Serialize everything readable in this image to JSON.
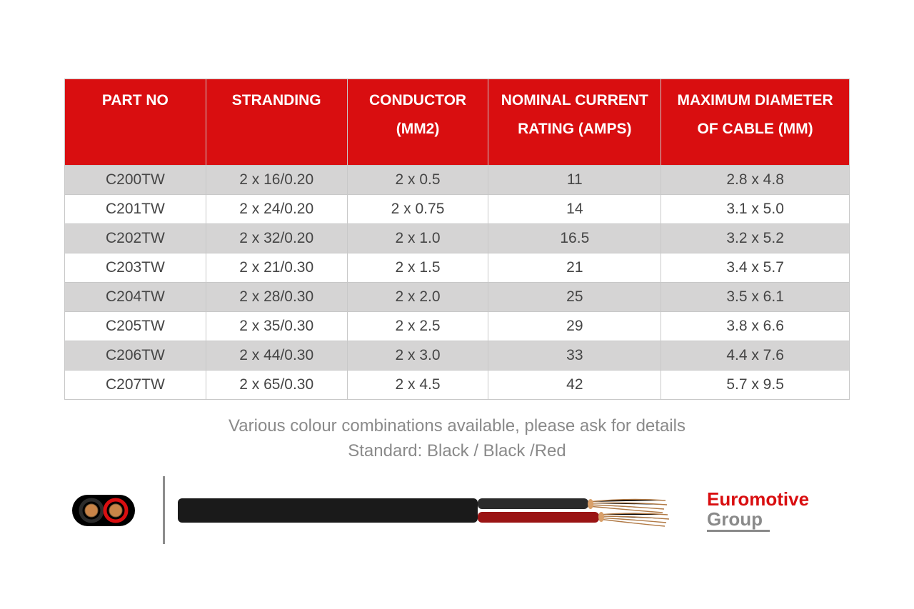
{
  "table": {
    "type": "table",
    "header_bg": "#d90e10",
    "header_fg": "#ffffff",
    "border_color": "#c8c8c8",
    "row_alt_bg": "#d5d4d4",
    "row_bg": "#ffffff",
    "cell_fg": "#454545",
    "header_fontsize": 21,
    "cell_fontsize": 21,
    "col_widths_pct": [
      18,
      18,
      18,
      22,
      24
    ],
    "columns": {
      "c0_line1": "PART NO",
      "c0_line2": "",
      "c1_line1": "STRANDING",
      "c1_line2": "",
      "c2_line1": "CONDUCTOR",
      "c2_line2": "(MM2)",
      "c3_line1": "NOMINAL CURRENT",
      "c3_line2": "RATING (AMPS)",
      "c4_line1": "MAXIMUM DIAMETER",
      "c4_line2": "OF CABLE (MM)"
    },
    "rows": [
      {
        "part": "C200TW",
        "stranding": "2 x 16/0.20",
        "conductor": "2 x 0.5",
        "rating": "11",
        "dia": "2.8 x 4.8",
        "alt": true
      },
      {
        "part": "C201TW",
        "stranding": "2 x 24/0.20",
        "conductor": "2 x 0.75",
        "rating": "14",
        "dia": "3.1 x 5.0",
        "alt": false
      },
      {
        "part": "C202TW",
        "stranding": "2 x 32/0.20",
        "conductor": "2 x 1.0",
        "rating": "16.5",
        "dia": "3.2 x 5.2",
        "alt": true
      },
      {
        "part": "C203TW",
        "stranding": "2 x 21/0.30",
        "conductor": "2 x 1.5",
        "rating": "21",
        "dia": "3.4 x 5.7",
        "alt": false
      },
      {
        "part": "C204TW",
        "stranding": "2 x 28/0.30",
        "conductor": "2 x 2.0",
        "rating": "25",
        "dia": "3.5 x 6.1",
        "alt": true
      },
      {
        "part": "C205TW",
        "stranding": "2 x 35/0.30",
        "conductor": "2 x 2.5",
        "rating": "29",
        "dia": "3.8 x 6.6",
        "alt": false
      },
      {
        "part": "C206TW",
        "stranding": "2 x 44/0.30",
        "conductor": "2 x 3.0",
        "rating": "33",
        "dia": "4.4 x 7.6",
        "alt": true
      },
      {
        "part": "C207TW",
        "stranding": "2 x 65/0.30",
        "conductor": "2 x 4.5",
        "rating": "42",
        "dia": "5.7 x 9.5",
        "alt": false
      }
    ]
  },
  "caption": {
    "line1": "Various colour combinations available, please ask for details",
    "line2": "Standard: Black / Black /Red",
    "color": "#8a8a8a",
    "fontsize": 24
  },
  "diagram": {
    "cross_section": {
      "sheath_color": "#000000",
      "core1_ring": "#2b2b2b",
      "core2_ring": "#d90e10",
      "copper": "#c98448"
    },
    "side_view": {
      "sheath_color": "#1a1a1a",
      "core1_insul": "#2b2b2b",
      "core2_insul": "#9a1414",
      "copper": "#d9a06a",
      "copper_strand": "#b17a46"
    },
    "divider_color": "#8d8d8d"
  },
  "logo": {
    "line1": "Euromotive",
    "line2": "Group",
    "line1_color": "#d90e10",
    "line2_color": "#8a8a8a",
    "underline_color": "#8a8a8a",
    "fontsize": 26
  }
}
